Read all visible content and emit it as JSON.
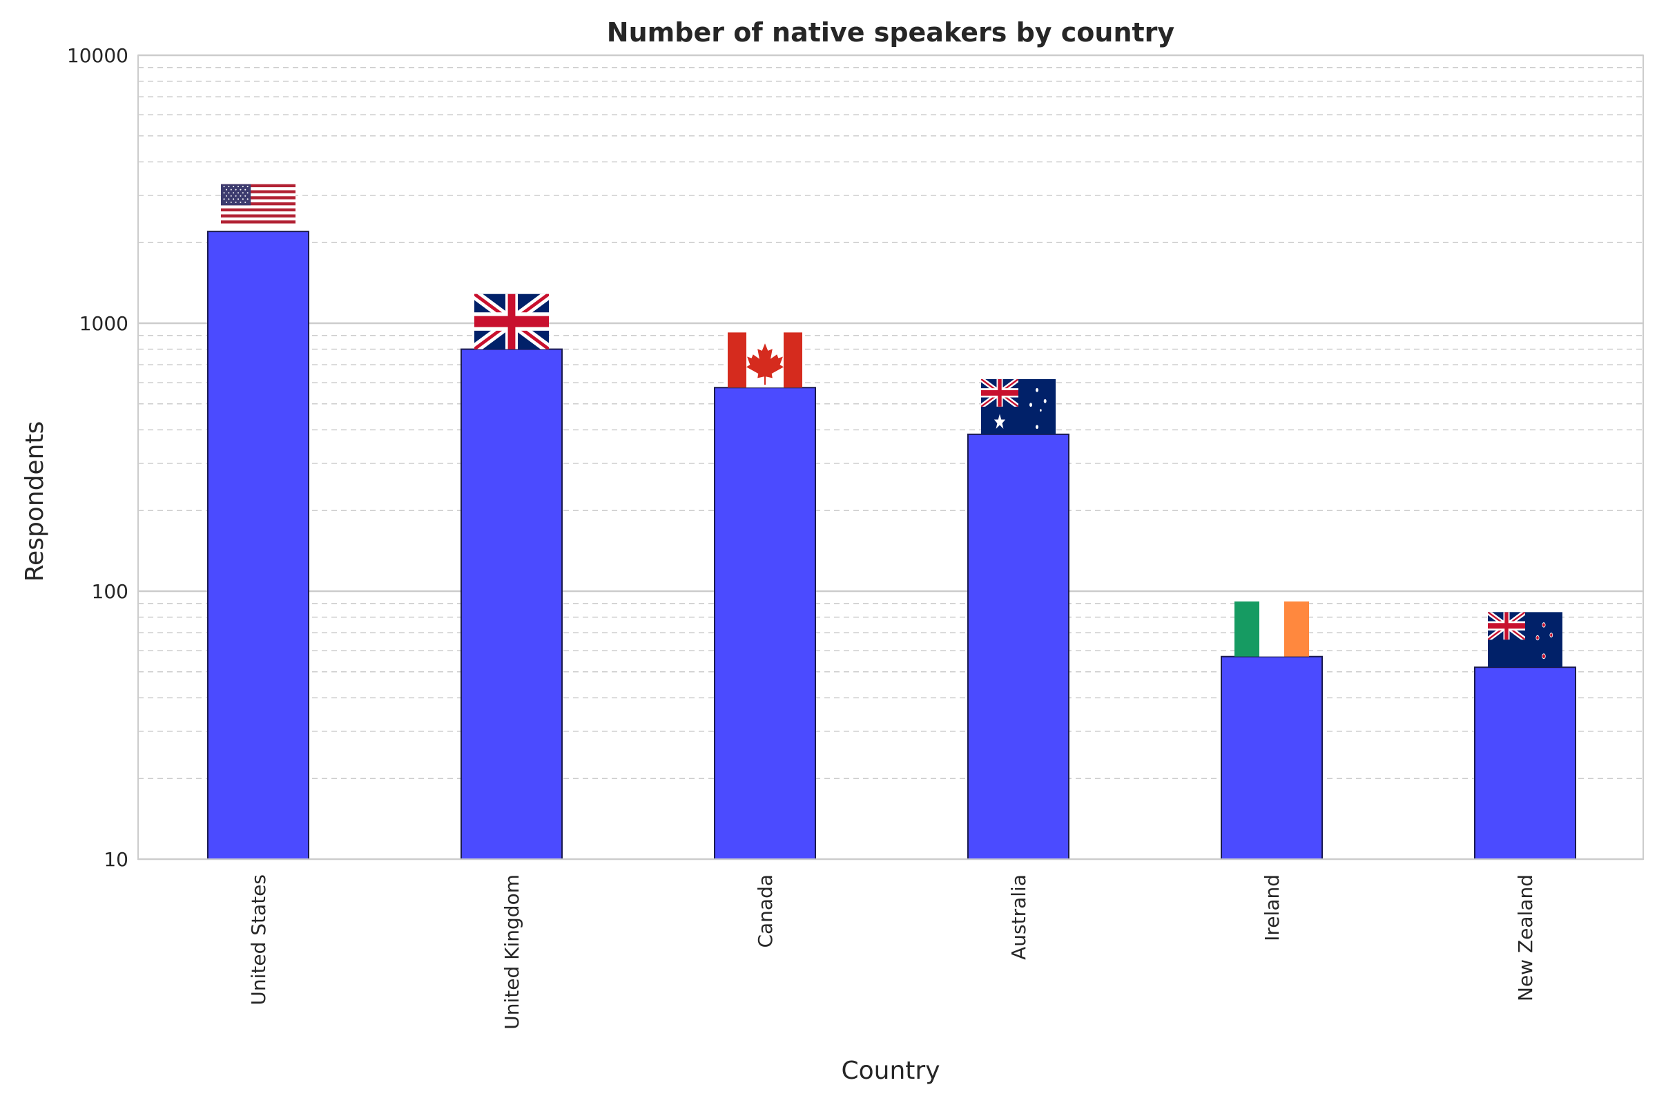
{
  "chart_data": {
    "type": "bar",
    "title": "Number of native speakers by country",
    "xlabel": "Country",
    "ylabel": "Respondents",
    "yscale": "log",
    "ylim": [
      10,
      10000
    ],
    "yticks": [
      10,
      100,
      1000,
      10000
    ],
    "ytick_labels": [
      "10",
      "100",
      "1000",
      "10000"
    ],
    "grid": {
      "major": true,
      "minor": true,
      "minor_style": "dashed"
    },
    "bar_color": "#4b4bff",
    "bar_edge_color": "#1a1a4d",
    "categories": [
      "United States",
      "United Kingdom",
      "Canada",
      "Australia",
      "Ireland",
      "New Zealand"
    ],
    "values": [
      2200,
      800,
      575,
      385,
      57,
      52
    ],
    "flags": [
      "us-flag-icon",
      "uk-flag-icon",
      "canada-flag-icon",
      "australia-flag-icon",
      "ireland-flag-icon",
      "new-zealand-flag-icon"
    ]
  }
}
